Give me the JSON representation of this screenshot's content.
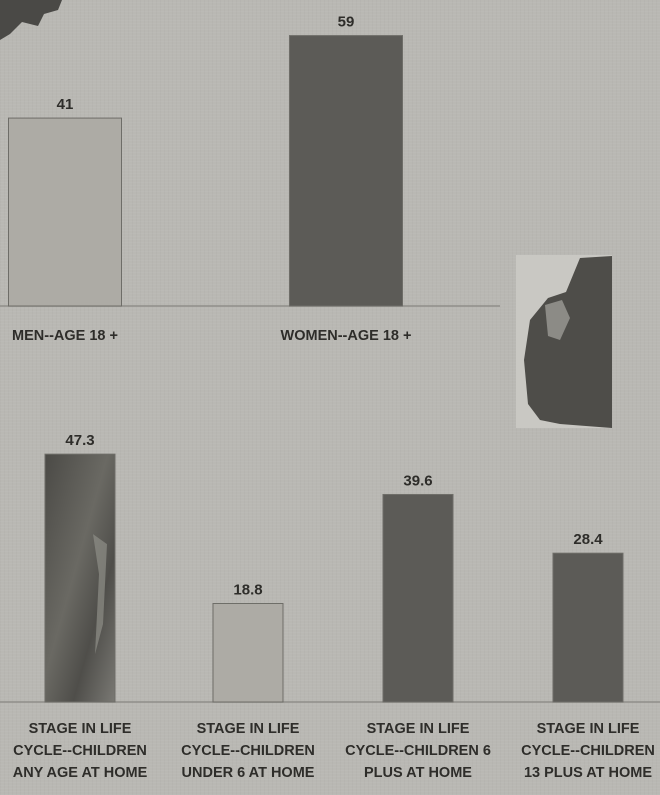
{
  "chart_data": [
    {
      "type": "bar",
      "categories": [
        "MEN--AGE 18 +",
        "WOMEN--AGE 18 +"
      ],
      "values": [
        41,
        59
      ],
      "colors": [
        "#adaba5",
        "#5c5b57"
      ],
      "ylim": [
        0,
        60
      ],
      "grid": false,
      "legend": "none"
    },
    {
      "type": "bar",
      "categories": [
        "STAGE IN LIFE CYCLE--CHILDREN ANY AGE AT HOME",
        "STAGE IN LIFE CYCLE--CHILDREN UNDER 6 AT HOME",
        "STAGE IN LIFE CYCLE--CHILDREN 6 PLUS AT HOME",
        "STAGE IN LIFE CYCLE--CHILDREN 13 PLUS AT HOME"
      ],
      "category_lines": [
        [
          "STAGE IN LIFE",
          "CYCLE--CHILDREN",
          "ANY AGE AT HOME"
        ],
        [
          "STAGE IN LIFE",
          "CYCLE--CHILDREN",
          "UNDER 6 AT HOME"
        ],
        [
          "STAGE IN LIFE",
          "CYCLE--CHILDREN 6",
          "PLUS AT HOME"
        ],
        [
          "STAGE IN LIFE",
          "CYCLE--CHILDREN",
          "13 PLUS AT HOME"
        ]
      ],
      "values": [
        47.3,
        18.8,
        39.6,
        28.4
      ],
      "colors": [
        "#5a5954",
        "#adaba5",
        "#5c5b57",
        "#5c5b57"
      ],
      "ylim": [
        0,
        50
      ],
      "grid": false,
      "legend": "none"
    }
  ]
}
